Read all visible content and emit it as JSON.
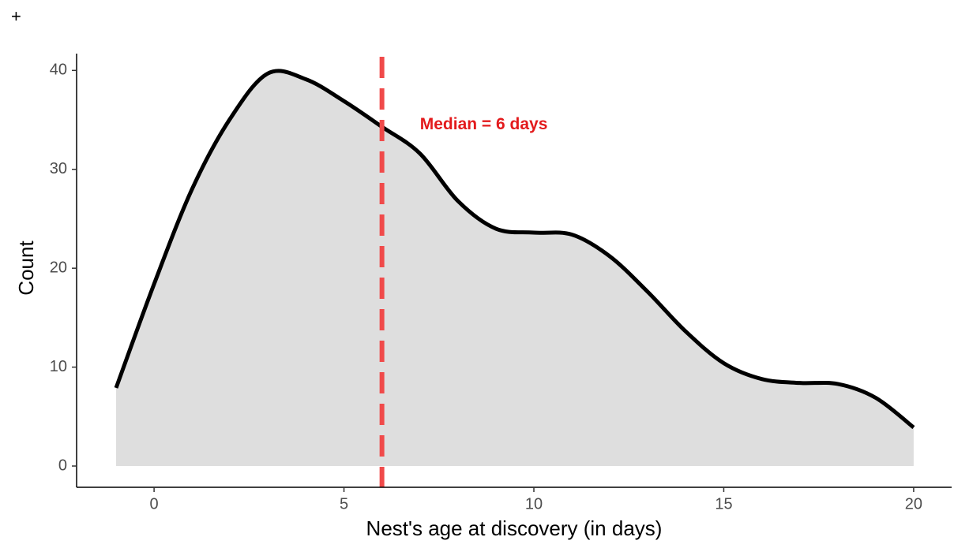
{
  "corner_mark": "+",
  "chart_data": {
    "type": "area",
    "x": [
      -1,
      0,
      1,
      2,
      3,
      4,
      5,
      6,
      7,
      8,
      9,
      10,
      11,
      12,
      13,
      14,
      15,
      16,
      17,
      18,
      19,
      20
    ],
    "values": [
      7.9,
      18.4,
      28,
      35.1,
      39.7,
      39.1,
      36.9,
      34.3,
      31.6,
      26.8,
      24,
      23.6,
      23.4,
      21.2,
      17.6,
      13.6,
      10.4,
      8.8,
      8.4,
      8.3,
      6.9,
      3.9
    ],
    "fill_color": "#dedede",
    "line_color": "#000000",
    "median": 6,
    "median_color": "#f04a4a",
    "annotation": "Median = 6 days",
    "annotation_x": 7,
    "annotation_y": 34.5,
    "annotation_color": "#e31a1c",
    "xlabel": "Nest's age at discovery (in days)",
    "ylabel": "Count",
    "xlim": [
      -2.04,
      21.0
    ],
    "ylim": [
      -2.15,
      41.7
    ],
    "xticks": [
      0,
      5,
      10,
      15,
      20
    ],
    "yticks": [
      0,
      10,
      20,
      30,
      40
    ],
    "grid": false
  }
}
